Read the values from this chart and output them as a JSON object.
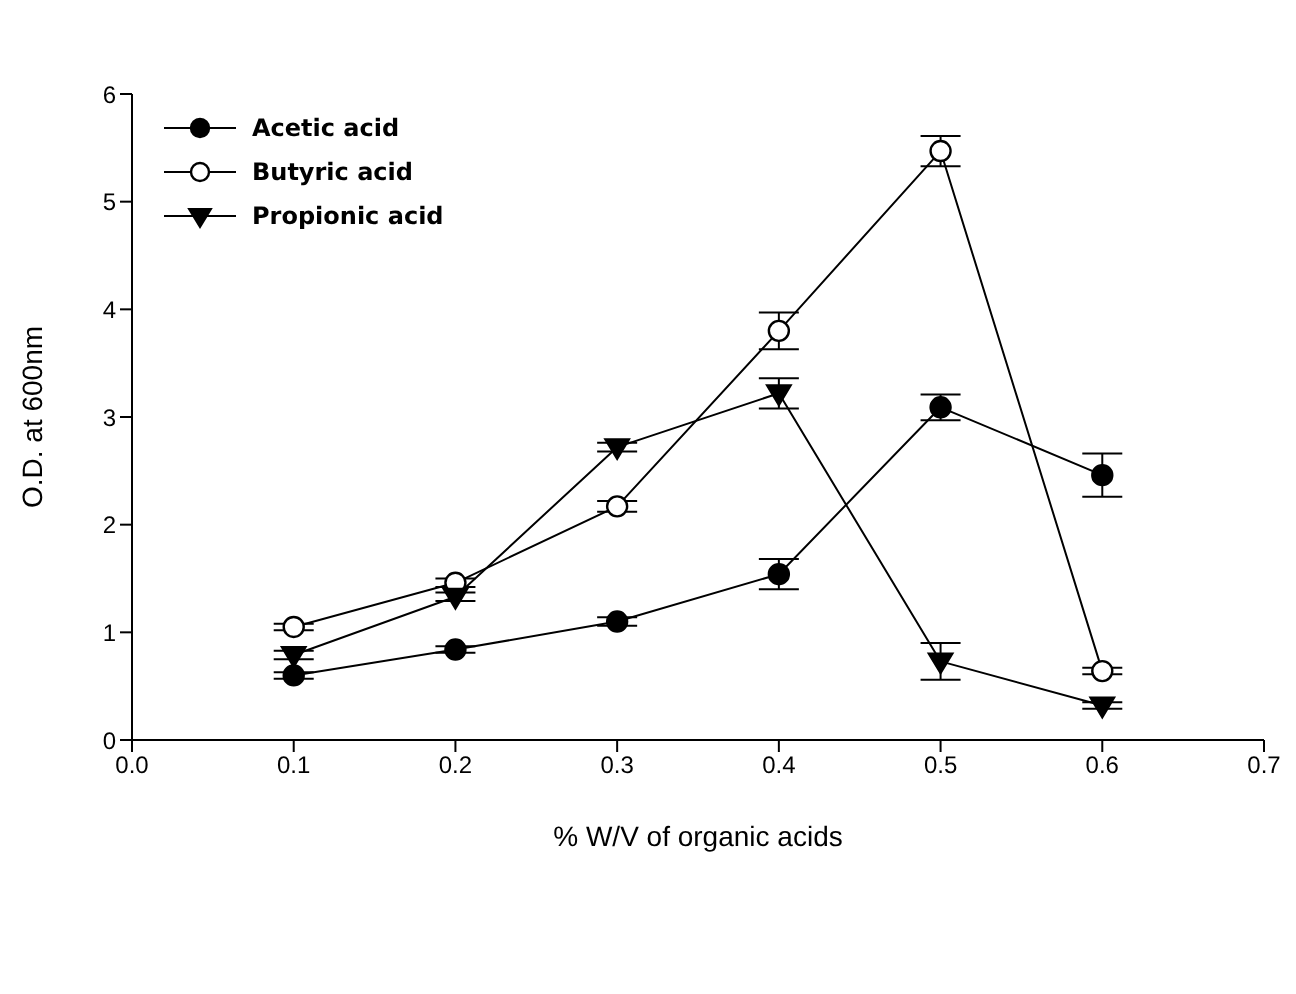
{
  "chart_data": {
    "type": "line",
    "xlabel": "% W/V of organic acids",
    "ylabel": "O.D. at 600nm",
    "x": [
      0.1,
      0.2,
      0.3,
      0.4,
      0.5,
      0.6
    ],
    "series": [
      {
        "name": "Acetic acid",
        "color": "#000000",
        "marker": "circle",
        "values": [
          0.6,
          0.84,
          1.1,
          1.54,
          3.09,
          2.46
        ],
        "errors": [
          0.03,
          0.03,
          0.04,
          0.14,
          0.12,
          0.2
        ]
      },
      {
        "name": "Butyric acid",
        "color": "#000000",
        "marker": "circle",
        "colors": [
          "#ffffff",
          "#ffffff",
          "#ffffff",
          "#ffffff",
          "#ffffff",
          "#ffffff"
        ],
        "values": [
          1.05,
          1.46,
          2.17,
          3.8,
          5.47,
          0.64
        ],
        "errors": [
          0.03,
          0.04,
          0.05,
          0.17,
          0.14,
          0.03
        ]
      },
      {
        "name": "Propionic acid",
        "color": "#000000",
        "marker": "triangle",
        "values": [
          0.79,
          1.33,
          2.72,
          3.22,
          0.73,
          0.32
        ],
        "errors": [
          0.04,
          0.04,
          0.04,
          0.14,
          0.17,
          0.03
        ]
      }
    ],
    "xlim": [
      0,
      0.7
    ],
    "xticks": [
      {
        "value": 0,
        "label": "0.0"
      },
      0.1,
      0.2,
      0.3,
      0.4,
      0.5,
      0.6,
      0.7
    ],
    "ylim": [
      0,
      6
    ],
    "yticks": [
      0,
      1,
      2,
      3,
      4,
      5,
      6
    ],
    "grid": false,
    "legend": "top left",
    "line_style": "solid"
  }
}
